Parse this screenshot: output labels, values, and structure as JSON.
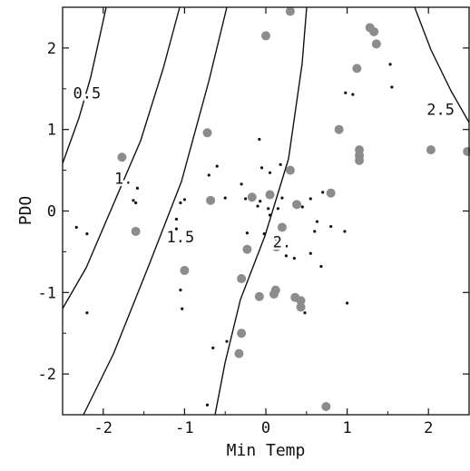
{
  "chart_data": {
    "type": "scatter",
    "xlabel": "Min Temp",
    "ylabel": "PDO",
    "xlim": [
      -2.5,
      2.5
    ],
    "ylim": [
      -2.5,
      2.5
    ],
    "x_ticks": [
      "-2",
      "-1",
      "0",
      "1",
      "2"
    ],
    "y_ticks": [
      "2",
      "1",
      "0",
      "-1",
      "-2"
    ],
    "grid": false,
    "contours": [
      {
        "label": "0.5",
        "label_at": {
          "x": -2.2,
          "y": 1.45
        }
      },
      {
        "label": "1.",
        "label_at": {
          "x": -1.75,
          "y": 0.4
        }
      },
      {
        "label": "1.5",
        "label_at": {
          "x": -1.05,
          "y": -0.32
        }
      },
      {
        "label": "2.",
        "label_at": {
          "x": 0.2,
          "y": -0.38
        }
      },
      {
        "label": "2.5",
        "label_at": {
          "x": 2.15,
          "y": 1.25
        }
      }
    ],
    "series": [
      {
        "marker": "large-gray-dot",
        "color": "#8c8c8c",
        "points": [
          [
            0.3,
            2.45
          ],
          [
            1.28,
            2.25
          ],
          [
            1.33,
            2.2
          ],
          [
            1.36,
            2.05
          ],
          [
            0.0,
            2.15
          ],
          [
            1.12,
            1.75
          ],
          [
            0.9,
            1.0
          ],
          [
            1.15,
            0.75
          ],
          [
            1.15,
            0.68
          ],
          [
            1.15,
            0.62
          ],
          [
            2.03,
            0.75
          ],
          [
            2.48,
            0.73
          ],
          [
            -0.72,
            0.96
          ],
          [
            -1.77,
            0.66
          ],
          [
            -1.6,
            -0.25
          ],
          [
            0.3,
            0.5
          ],
          [
            0.8,
            0.22
          ],
          [
            -0.17,
            0.17
          ],
          [
            0.05,
            0.2
          ],
          [
            0.38,
            0.08
          ],
          [
            -0.68,
            0.13
          ],
          [
            0.2,
            -0.2
          ],
          [
            0.13,
            -0.44
          ],
          [
            -0.23,
            -0.47
          ],
          [
            -1.0,
            -0.73
          ],
          [
            -0.3,
            -0.83
          ],
          [
            0.12,
            -0.97
          ],
          [
            -0.08,
            -1.05
          ],
          [
            0.1,
            -1.02
          ],
          [
            0.36,
            -1.06
          ],
          [
            0.43,
            -1.1
          ],
          [
            0.43,
            -1.18
          ],
          [
            -0.3,
            -1.5
          ],
          [
            -0.33,
            -1.75
          ],
          [
            0.74,
            -2.4
          ]
        ]
      },
      {
        "marker": "small-black-dot",
        "color": "#111111",
        "points": [
          [
            1.53,
            1.8
          ],
          [
            1.55,
            1.52
          ],
          [
            0.98,
            1.45
          ],
          [
            1.07,
            1.43
          ],
          [
            -1.63,
            0.13
          ],
          [
            -1.58,
            0.28
          ],
          [
            -1.6,
            0.1
          ],
          [
            -2.33,
            -0.2
          ],
          [
            -2.2,
            -0.28
          ],
          [
            -2.2,
            -1.25
          ],
          [
            -0.6,
            0.55
          ],
          [
            -0.7,
            0.44
          ],
          [
            -0.5,
            0.16
          ],
          [
            -1.0,
            0.14
          ],
          [
            -1.05,
            0.1
          ],
          [
            -0.08,
            0.88
          ],
          [
            -0.05,
            0.53
          ],
          [
            0.05,
            0.47
          ],
          [
            0.18,
            0.57
          ],
          [
            -0.3,
            0.33
          ],
          [
            -0.25,
            0.15
          ],
          [
            -0.07,
            0.12
          ],
          [
            -0.1,
            0.06
          ],
          [
            0.03,
            0.03
          ],
          [
            0.05,
            -0.05
          ],
          [
            0.15,
            0.03
          ],
          [
            0.45,
            0.05
          ],
          [
            0.2,
            0.16
          ],
          [
            0.55,
            0.15
          ],
          [
            0.63,
            -0.13
          ],
          [
            0.6,
            -0.25
          ],
          [
            -0.23,
            -0.27
          ],
          [
            -0.02,
            -0.28
          ],
          [
            0.13,
            -0.35
          ],
          [
            0.25,
            -0.55
          ],
          [
            0.35,
            -0.58
          ],
          [
            0.55,
            -0.52
          ],
          [
            0.68,
            -0.68
          ],
          [
            -1.1,
            -0.1
          ],
          [
            -1.1,
            -0.22
          ],
          [
            -1.05,
            -0.97
          ],
          [
            -1.03,
            -1.2
          ],
          [
            -0.48,
            -1.6
          ],
          [
            -0.65,
            -1.68
          ],
          [
            -0.72,
            -2.38
          ],
          [
            0.48,
            -1.25
          ],
          [
            1.0,
            -1.13
          ],
          [
            0.7,
            0.23
          ],
          [
            0.8,
            -0.19
          ],
          [
            0.97,
            -0.25
          ]
        ]
      }
    ]
  }
}
